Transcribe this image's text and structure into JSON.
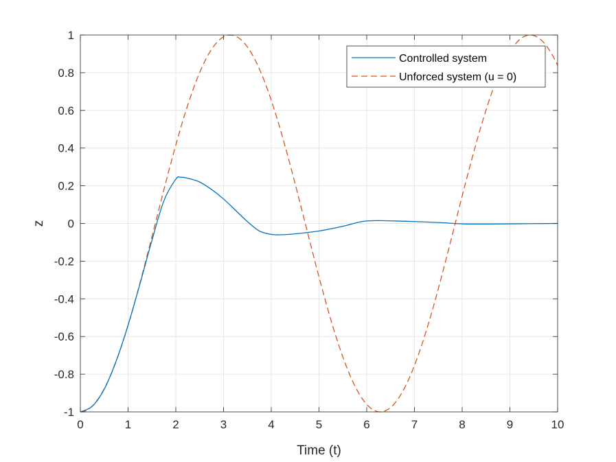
{
  "chart_data": {
    "type": "line",
    "title": "",
    "xlabel": "Time (t)",
    "ylabel": "z",
    "xlim": [
      0,
      10
    ],
    "ylim": [
      -1,
      1
    ],
    "grid": true,
    "legend_position": "top-right",
    "x_ticks": [
      "0",
      "1",
      "2",
      "3",
      "4",
      "5",
      "6",
      "7",
      "8",
      "9",
      "10"
    ],
    "y_ticks": [
      "-1",
      "-0.8",
      "-0.6",
      "-0.4",
      "-0.2",
      "0",
      "0.2",
      "0.4",
      "0.6",
      "0.8",
      "1"
    ],
    "series": [
      {
        "name": "Controlled system",
        "color": "#0072BD",
        "dash": "solid",
        "x": [
          0,
          0.25,
          0.5,
          0.75,
          1.0,
          1.25,
          1.5,
          1.75,
          2.0,
          2.1,
          2.25,
          2.5,
          2.75,
          3.0,
          3.25,
          3.5,
          3.75,
          4.0,
          4.2,
          4.5,
          5.0,
          5.5,
          5.9,
          6.25,
          6.75,
          7.0,
          7.5,
          8.0,
          8.5,
          9.0,
          9.5,
          10.0
        ],
        "y": [
          -1.0,
          -0.97,
          -0.88,
          -0.73,
          -0.54,
          -0.32,
          -0.09,
          0.12,
          0.235,
          0.245,
          0.24,
          0.22,
          0.18,
          0.13,
          0.07,
          0.01,
          -0.04,
          -0.058,
          -0.06,
          -0.055,
          -0.04,
          -0.015,
          0.01,
          0.015,
          0.012,
          0.01,
          0.005,
          -0.002,
          -0.003,
          -0.002,
          -0.001,
          0.0
        ]
      },
      {
        "name": "Unforced system (u = 0)",
        "color": "#D95319",
        "dash": "dashed",
        "function": "-cos(t)",
        "x": [
          0,
          1.5708,
          3.1416,
          4.7124,
          6.2832,
          7.854,
          9.4248,
          10
        ],
        "y": [
          -1,
          0,
          1,
          0,
          -1,
          0,
          1,
          0.839
        ]
      }
    ]
  }
}
